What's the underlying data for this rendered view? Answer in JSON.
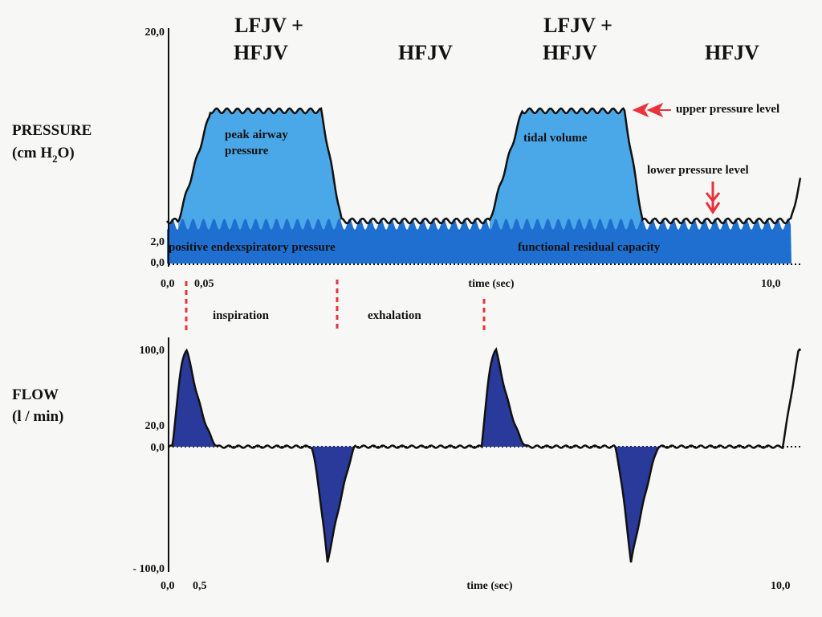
{
  "phases": [
    [
      "LFJV +",
      "HFJV"
    ],
    [
      "HFJV"
    ],
    [
      "LFJV +",
      "HFJV"
    ],
    [
      "HFJV"
    ]
  ],
  "pressure": {
    "label": "PRESSURE",
    "unit": [
      "(cm H",
      "2",
      "O)"
    ],
    "yticks": [
      "20,0",
      "2,0",
      "0,0"
    ],
    "xticks": [
      "0,0",
      "0,05",
      "10,0"
    ],
    "xlabel": "time (sec)",
    "annotations": {
      "peak": [
        "peak airway",
        "pressure"
      ],
      "tidal": "tidal volume",
      "upper": "upper pressure level",
      "lower": "lower  pressure level",
      "peep": "positive endexspiratory pressure",
      "frc": "functional residual capacity"
    }
  },
  "phase_labels": [
    "inspiration",
    "exhalation"
  ],
  "flow": {
    "label": "FLOW",
    "unit": "(l / min)",
    "yticks": [
      "100,0",
      "20,0",
      "0,0",
      "- 100,0"
    ],
    "xticks": [
      "0,0",
      "0,5",
      "10,0"
    ],
    "xlabel": "time (sec)"
  }
}
